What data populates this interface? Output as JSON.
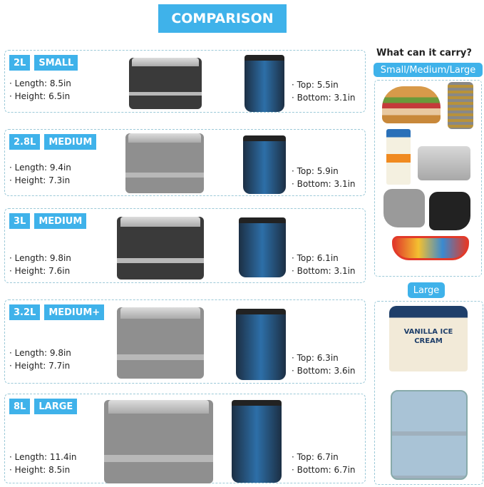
{
  "title": "COMPARISON",
  "rows": [
    {
      "capacity": "2L",
      "size": "SMALL",
      "length": "· Length: 8.5in",
      "height": "· Height: 6.5in",
      "top": "· Top: 5.5in",
      "bottom": "· Bottom: 3.1in"
    },
    {
      "capacity": "2.8L",
      "size": "MEDIUM",
      "length": "· Length: 9.4in",
      "height": "· Height: 7.3in",
      "top": "· Top: 5.9in",
      "bottom": "· Bottom: 3.1in"
    },
    {
      "capacity": "3L",
      "size": "MEDIUM",
      "length": "· Length: 9.8in",
      "height": "· Height: 7.6in",
      "top": "· Top: 6.1in",
      "bottom": "· Bottom: 3.1in"
    },
    {
      "capacity": "3.2L",
      "size": "MEDIUM+",
      "length": "· Length: 9.8in",
      "height": "· Height: 7.7in",
      "top": "· Top: 6.3in",
      "bottom": "· Bottom: 3.6in"
    },
    {
      "capacity": "8L",
      "size": "LARGE",
      "length": "· Length: 11.4in",
      "height": "· Height: 8.5in",
      "top": "· Top: 6.7in",
      "bottom": "· Bottom: 6.7in"
    }
  ],
  "carry": {
    "heading": "What can it carry?",
    "small_label": "Small/Medium/Large",
    "large_label": "Large",
    "small_items": [
      "burger",
      "multi-tool",
      "orange-juice",
      "power-bank",
      "gloves",
      "sunglasses"
    ],
    "large_items": [
      "ice-cream-tub",
      "lunch-box"
    ],
    "ice_cream_text": "VANILLA ICE CREAM"
  },
  "colors": {
    "accent": "#3fb2ea",
    "dashed_border": "#9cc9d8"
  }
}
